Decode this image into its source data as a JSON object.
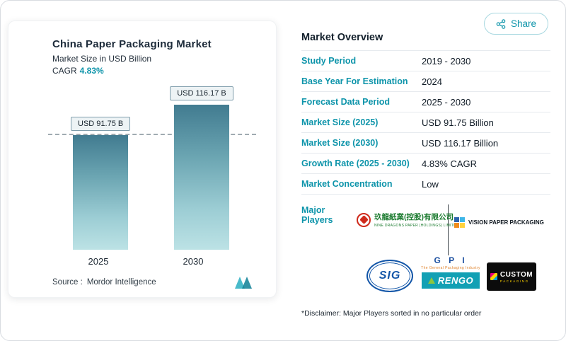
{
  "colors": {
    "accent": "#0d94aa",
    "bar_top": "#417b90",
    "bar_bottom": "#bce2e5"
  },
  "share_button": {
    "label": "Share"
  },
  "chart_data": {
    "type": "bar",
    "title": "China Paper Packaging Market",
    "subtitle": "Market Size in USD Billion",
    "cagr_label": "CAGR",
    "cagr_value": "4.83%",
    "categories": [
      "2025",
      "2030"
    ],
    "values": [
      91.75,
      116.17
    ],
    "bar_labels": [
      "USD 91.75 B",
      "USD 116.17 B"
    ],
    "reference_line_value": 91.75,
    "ylim": [
      0,
      116.17
    ],
    "grid": false,
    "legend": false,
    "source_label": "Source :",
    "source_value": "Mordor Intelligence"
  },
  "overview": {
    "title": "Market Overview",
    "rows": [
      {
        "label": "Study Period",
        "value": "2019 - 2030"
      },
      {
        "label": "Base Year For Estimation",
        "value": "2024"
      },
      {
        "label": "Forecast Data Period",
        "value": "2025 - 2030"
      },
      {
        "label": "Market Size (2025)",
        "value": "USD 91.75 Billion"
      },
      {
        "label": "Market Size (2030)",
        "value": "USD 116.17 Billion"
      },
      {
        "label": "Growth Rate (2025 - 2030)",
        "value": "4.83% CAGR"
      },
      {
        "label": "Market Concentration",
        "value": "Low"
      }
    ]
  },
  "major_players": {
    "label": "Major Players",
    "disclaimer": "*Disclaimer: Major Players sorted in no particular order",
    "items": [
      {
        "name": "Nine Dragons Paper",
        "icon": "nine-dragons-emblem",
        "text_cn": "玖龍紙業(控股)有限公司",
        "text_en": "NINE DRAGONS PAPER (HOLDINGS) LIMITED"
      },
      {
        "name": "Vision Paper Packaging",
        "icon": "vision-logo-icon",
        "text": "VISION PAPER PACKAGING"
      },
      {
        "name": "SIG",
        "text": "SIG"
      },
      {
        "name": "GPI Rengo",
        "gpi": "G P I",
        "gpi_sub": "The General Packaging Industry",
        "rengo": "RENGO"
      },
      {
        "name": "Custom Packaging",
        "icon": "custom-cube-icon",
        "line1": "CUSTOM",
        "line2": "PACKAGING"
      }
    ]
  }
}
